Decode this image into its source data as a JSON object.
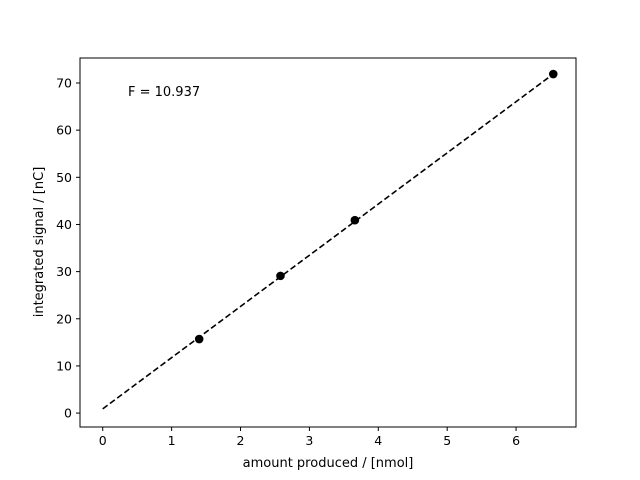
{
  "chart_data": {
    "type": "scatter",
    "title": "",
    "xlabel": "amount produced / [nmol]",
    "ylabel": "integrated signal / [nC]",
    "xlim": [
      -0.33,
      6.87
    ],
    "ylim": [
      -2.95,
      75.3
    ],
    "xticks": [
      0,
      1,
      2,
      3,
      4,
      5,
      6
    ],
    "yticks": [
      0,
      10,
      20,
      30,
      40,
      50,
      60,
      70
    ],
    "grid": false,
    "annotation": "F = 10.937",
    "series": [
      {
        "kind": "points",
        "marker": "circle",
        "color": "#000000",
        "x": [
          1.4,
          2.58,
          3.66,
          6.54
        ],
        "y": [
          15.7,
          29.1,
          40.9,
          71.9
        ]
      },
      {
        "kind": "fit-line",
        "style": "dashed",
        "color": "#000000",
        "x": [
          0,
          6.54
        ],
        "y": [
          0.9,
          71.9
        ]
      }
    ]
  }
}
